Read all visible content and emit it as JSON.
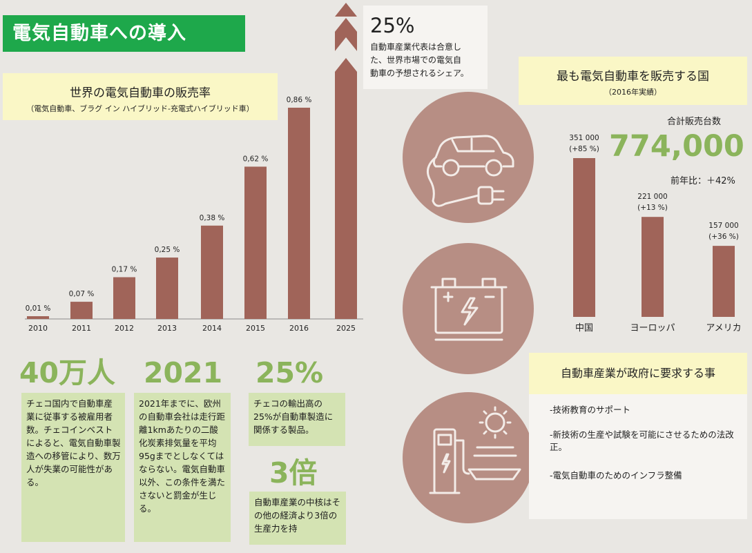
{
  "header": {
    "title": "電気自動車への導入"
  },
  "left_chart_box": {
    "title": "世界の電気自動車の販売率",
    "subtitle": "（電気自動車、ブラグ イン ハイブリッド-充電式ハイブリッド車）"
  },
  "forecast": {
    "value": "25%",
    "text": [
      "自動車産業代表は合意し",
      "た、世界市場での電気自",
      "動車の予想されるシェア。"
    ]
  },
  "right_chart_box": {
    "title": "最も電気自動車を販売する国",
    "subtitle": "（2016年実績）"
  },
  "total": {
    "label": "合計販売台数",
    "value": "774,000",
    "yoy": "前年比：＋42%"
  },
  "demands": {
    "title": "自動車産業が政府に要求する事",
    "items": [
      "-技術教育のサポート",
      "-新技術の生産や試験を可能にさせるための法改正。",
      "-電気自動車のためのインフラ整備"
    ]
  },
  "stats": [
    {
      "big": "40万人",
      "text": "チェコ国内で自動車産業に従事する被雇用者数。チェコインベストによると、電気自動車製造への移管により、数万人が失業の可能性がある。"
    },
    {
      "big": "2021",
      "text": "2021年までに、欧州の自動車会社は走行距離1kmあたりの二酸化炭素排気量を平均95gまでとしなくてはならない。電気自動車以外、この条件を満たさないと罰金が生じる。"
    },
    {
      "big": "25%",
      "text": "チェコの輸出高の25%が自動車製造に関係する製品。"
    },
    {
      "big": "3倍",
      "text": "自動車産業の中核はその他の経済より3倍の生産力を持"
    }
  ],
  "icons": [
    "electric-car-plug-icon",
    "car-battery-icon",
    "charging-station-solar-icon"
  ],
  "colors": {
    "bar": "#a06459",
    "header": "#1ea84b",
    "accent_green": "#8bb45b",
    "circle": "#b78e84"
  },
  "chart_data": [
    {
      "type": "bar",
      "title": "世界の電気自動車の販売率",
      "categories": [
        "2010",
        "2011",
        "2012",
        "2013",
        "2014",
        "2015",
        "2016",
        "2025"
      ],
      "values": [
        0.01,
        0.07,
        0.17,
        0.25,
        0.38,
        0.62,
        0.86,
        25
      ],
      "labels": [
        "0,01 %",
        "0,07 %",
        "0,17 %",
        "0,25 %",
        "0,38 %",
        "0,62 %",
        "0,86 %",
        ""
      ],
      "unit": "%",
      "note": "2025 bar is broken (axis break)"
    },
    {
      "type": "bar",
      "title": "最も電気自動車を販売する国",
      "categories": [
        "中国",
        "ヨーロッパ",
        "アメリカ"
      ],
      "values": [
        351000,
        221000,
        157000
      ],
      "labels": [
        "351 000",
        "221 000",
        "157 000"
      ],
      "changes": [
        "(+85 %)",
        "(+13 %)",
        "(+36 %)"
      ]
    }
  ]
}
